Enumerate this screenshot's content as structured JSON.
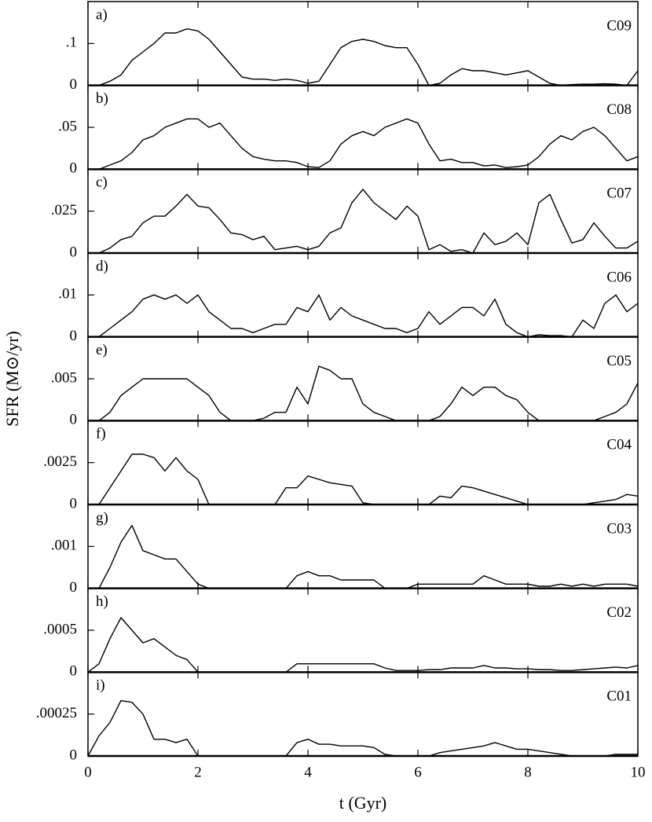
{
  "chart_data": {
    "type": "line",
    "xlabel": "t (Gyr)",
    "ylabel": "SFR (M⊙/yr)",
    "color": "#000000",
    "xlim": [
      0,
      10
    ],
    "xticks": [
      0,
      2,
      4,
      6,
      8,
      10
    ],
    "x": [
      0,
      0.2,
      0.4,
      0.6,
      0.8,
      1.0,
      1.2,
      1.4,
      1.6,
      1.8,
      2.0,
      2.2,
      2.4,
      2.6,
      2.8,
      3.0,
      3.2,
      3.4,
      3.6,
      3.8,
      4.0,
      4.2,
      4.4,
      4.6,
      4.8,
      5.0,
      5.2,
      5.4,
      5.6,
      5.8,
      6.0,
      6.2,
      6.4,
      6.6,
      6.8,
      7.0,
      7.2,
      7.4,
      7.6,
      7.8,
      8.0,
      8.2,
      8.4,
      8.6,
      8.8,
      9.0,
      9.2,
      9.4,
      9.6,
      9.8,
      10
    ],
    "panels": [
      {
        "label": "a)",
        "name": "C09",
        "ylim": [
          0,
          0.2
        ],
        "yticks": [
          0,
          {
            "value": 0.1,
            "label": ".1"
          }
        ],
        "values": [
          0,
          0,
          0.01,
          0.025,
          0.06,
          0.08,
          0.1,
          0.125,
          0.125,
          0.135,
          0.13,
          0.11,
          0.08,
          0.05,
          0.02,
          0.015,
          0.015,
          0.012,
          0.015,
          0.012,
          0.005,
          0.01,
          0.05,
          0.09,
          0.105,
          0.11,
          0.105,
          0.095,
          0.09,
          0.09,
          0.05,
          0,
          0.005,
          0.025,
          0.04,
          0.035,
          0.035,
          0.03,
          0.025,
          0.03,
          0.035,
          0.02,
          0.005,
          0,
          0.002,
          0.003,
          0.003,
          0.004,
          0.003,
          0,
          0.035
        ]
      },
      {
        "label": "b)",
        "name": "C08",
        "ylim": [
          0,
          0.1
        ],
        "yticks": [
          0,
          {
            "value": 0.05,
            "label": ".05"
          }
        ],
        "values": [
          0,
          0,
          0.005,
          0.01,
          0.02,
          0.035,
          0.04,
          0.05,
          0.055,
          0.06,
          0.06,
          0.05,
          0.055,
          0.04,
          0.025,
          0.015,
          0.012,
          0.01,
          0.01,
          0.008,
          0.003,
          0.002,
          0.01,
          0.03,
          0.04,
          0.045,
          0.04,
          0.05,
          0.055,
          0.06,
          0.055,
          0.03,
          0.01,
          0.012,
          0.008,
          0.008,
          0.004,
          0.005,
          0.002,
          0.003,
          0.005,
          0.015,
          0.03,
          0.04,
          0.035,
          0.045,
          0.05,
          0.04,
          0.025,
          0.01,
          0.015
        ]
      },
      {
        "label": "c)",
        "name": "C07",
        "ylim": [
          0,
          0.05
        ],
        "yticks": [
          0,
          {
            "value": 0.025,
            "label": ".025"
          }
        ],
        "values": [
          0,
          0,
          0.003,
          0.008,
          0.01,
          0.018,
          0.022,
          0.022,
          0.028,
          0.035,
          0.028,
          0.027,
          0.02,
          0.012,
          0.011,
          0.008,
          0.01,
          0.002,
          0.003,
          0.004,
          0.002,
          0.004,
          0.012,
          0.015,
          0.03,
          0.038,
          0.03,
          0.025,
          0.02,
          0.028,
          0.022,
          0.002,
          0.005,
          0.001,
          0.002,
          0,
          0.012,
          0.005,
          0.007,
          0.012,
          0.005,
          0.03,
          0.035,
          0.02,
          0.006,
          0.008,
          0.018,
          0.01,
          0.003,
          0.003,
          0.007
        ]
      },
      {
        "label": "d)",
        "name": "C06",
        "ylim": [
          0,
          0.02
        ],
        "yticks": [
          0,
          {
            "value": 0.01,
            "label": ".01"
          }
        ],
        "values": [
          0,
          0,
          0.002,
          0.004,
          0.006,
          0.009,
          0.01,
          0.009,
          0.01,
          0.008,
          0.01,
          0.006,
          0.004,
          0.002,
          0.002,
          0.001,
          0.002,
          0.003,
          0.003,
          0.007,
          0.006,
          0.01,
          0.004,
          0.007,
          0.005,
          0.004,
          0.003,
          0.002,
          0.002,
          0.001,
          0.002,
          0.006,
          0.003,
          0.005,
          0.007,
          0.007,
          0.005,
          0.009,
          0.003,
          0.001,
          0,
          0.0005,
          0.0003,
          0.0003,
          0,
          0.004,
          0.002,
          0.008,
          0.01,
          0.006,
          0.008
        ]
      },
      {
        "label": "e)",
        "name": "C05",
        "ylim": [
          0,
          0.01
        ],
        "yticks": [
          0,
          {
            "value": 0.005,
            "label": ".005"
          }
        ],
        "values": [
          0,
          0,
          0.001,
          0.003,
          0.004,
          0.005,
          0.005,
          0.005,
          0.005,
          0.005,
          0.004,
          0.003,
          0.001,
          0,
          0,
          0,
          0.0003,
          0.001,
          0.001,
          0.004,
          0.002,
          0.0065,
          0.006,
          0.005,
          0.005,
          0.002,
          0.001,
          0.0005,
          0,
          0,
          0,
          0,
          0.0005,
          0.002,
          0.004,
          0.003,
          0.004,
          0.004,
          0.003,
          0.0025,
          0.001,
          0,
          0,
          0,
          0,
          0,
          0,
          0.0005,
          0.001,
          0.002,
          0.0045
        ]
      },
      {
        "label": "f)",
        "name": "C04",
        "ylim": [
          0,
          0.005
        ],
        "yticks": [
          0,
          {
            "value": 0.0025,
            "label": ".0025"
          }
        ],
        "values": [
          0,
          0,
          0.001,
          0.002,
          0.003,
          0.003,
          0.0028,
          0.002,
          0.0028,
          0.002,
          0.0015,
          0,
          0,
          0,
          0,
          0,
          0,
          0,
          0.001,
          0.001,
          0.0017,
          0.0015,
          0.0013,
          0.0012,
          0.0011,
          0.0001,
          0,
          0,
          0,
          0,
          0,
          0,
          0.0005,
          0.0004,
          0.0011,
          0.001,
          0.0008,
          0.0006,
          0.0004,
          0.0002,
          0,
          0,
          0,
          0,
          0,
          0,
          0.0001,
          0.0002,
          0.0003,
          0.0006,
          0.0005
        ]
      },
      {
        "label": "g)",
        "name": "C03",
        "ylim": [
          0,
          0.002
        ],
        "yticks": [
          0,
          {
            "value": 0.001,
            "label": ".001"
          }
        ],
        "values": [
          0,
          0,
          0.0005,
          0.0011,
          0.0015,
          0.0009,
          0.0008,
          0.0007,
          0.0007,
          0.0004,
          0.0001,
          0,
          0,
          0,
          0,
          0,
          0,
          0,
          0,
          0.0003,
          0.0004,
          0.0003,
          0.0003,
          0.0002,
          0.0002,
          0.0002,
          0.0002,
          0,
          0,
          0,
          0.0001,
          0.0001,
          0.0001,
          0.0001,
          0.0001,
          0.0001,
          0.0003,
          0.0002,
          0.0001,
          0.0001,
          0.0001,
          5e-05,
          5e-05,
          0.0001,
          5e-05,
          0.0001,
          5e-05,
          0.0001,
          0.0001,
          0.0001,
          5e-05
        ]
      },
      {
        "label": "h)",
        "name": "C02",
        "ylim": [
          0,
          0.001
        ],
        "yticks": [
          0,
          {
            "value": 0.0005,
            "label": ".0005"
          }
        ],
        "values": [
          0,
          0.0001,
          0.0004,
          0.00065,
          0.0005,
          0.00035,
          0.0004,
          0.0003,
          0.0002,
          0.00015,
          0,
          0,
          0,
          0,
          0,
          0,
          0,
          0,
          0,
          0.0001,
          0.0001,
          0.0001,
          0.0001,
          0.0001,
          0.0001,
          0.0001,
          0.0001,
          5e-05,
          2e-05,
          2e-05,
          2e-05,
          3e-05,
          3e-05,
          5e-05,
          5e-05,
          5e-05,
          8e-05,
          5e-05,
          5e-05,
          4e-05,
          4e-05,
          3e-05,
          3e-05,
          2e-05,
          2e-05,
          3e-05,
          4e-05,
          5e-05,
          6e-05,
          5e-05,
          8e-05
        ]
      },
      {
        "label": "i)",
        "name": "C01",
        "ylim": [
          0,
          0.0005
        ],
        "yticks": [
          0,
          {
            "value": 0.00025,
            "label": ".00025"
          }
        ],
        "values": [
          0,
          0.00012,
          0.0002,
          0.00033,
          0.00032,
          0.00025,
          0.0001,
          0.0001,
          8e-05,
          0.0001,
          0,
          0,
          0,
          0,
          0,
          0,
          0,
          0,
          0,
          8e-05,
          0.0001,
          7e-05,
          7e-05,
          6e-05,
          6e-05,
          6e-05,
          5e-05,
          1e-05,
          0,
          0,
          0,
          0,
          2e-05,
          3e-05,
          4e-05,
          5e-05,
          6e-05,
          8e-05,
          6e-05,
          4e-05,
          4e-05,
          3e-05,
          2e-05,
          1e-05,
          0,
          0,
          0,
          0,
          1e-05,
          1e-05,
          1e-05
        ]
      }
    ]
  }
}
